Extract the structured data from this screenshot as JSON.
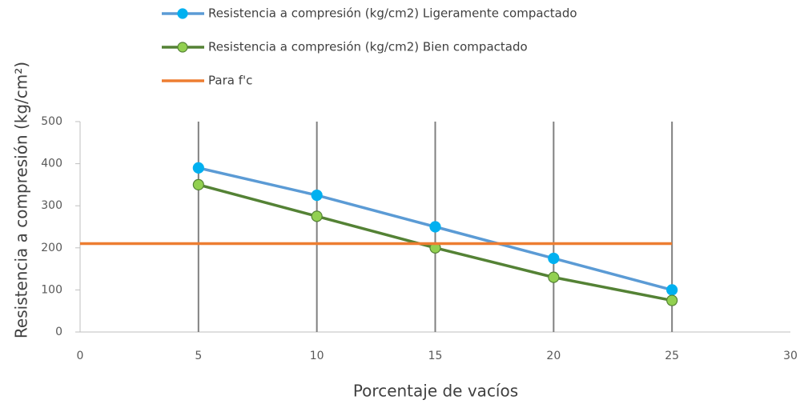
{
  "chart_data": {
    "type": "line",
    "xlabel": "Porcentaje de vacíos",
    "ylabel": "Resistencia a compresión (kg/cm²)",
    "xlim": [
      0,
      30
    ],
    "xticks": [
      0,
      5,
      10,
      15,
      20,
      25,
      30
    ],
    "ylim": [
      0,
      500
    ],
    "yticks": [
      0,
      100,
      200,
      300,
      400,
      500
    ],
    "grid": "x",
    "legend": "top",
    "series": [
      {
        "name": "Resistencia a compresión (kg/cm2) Ligeramente compactado",
        "color": "#5b9bd5",
        "marker_color": "#00b0f0",
        "marker_edge": "#00b0f0",
        "x": [
          5,
          10,
          15,
          20,
          25
        ],
        "values": [
          390,
          325,
          250,
          175,
          100
        ]
      },
      {
        "name": "Resistencia a compresión (kg/cm2) Bien compactado",
        "color": "#548235",
        "marker_color": "#92d050",
        "marker_edge": "#548235",
        "x": [
          5,
          10,
          15,
          20,
          25
        ],
        "values": [
          350,
          275,
          200,
          130,
          75
        ]
      },
      {
        "name": "Para f'c",
        "color": "#ed7d31",
        "x": [
          0,
          25
        ],
        "values": [
          210,
          210
        ]
      }
    ]
  }
}
